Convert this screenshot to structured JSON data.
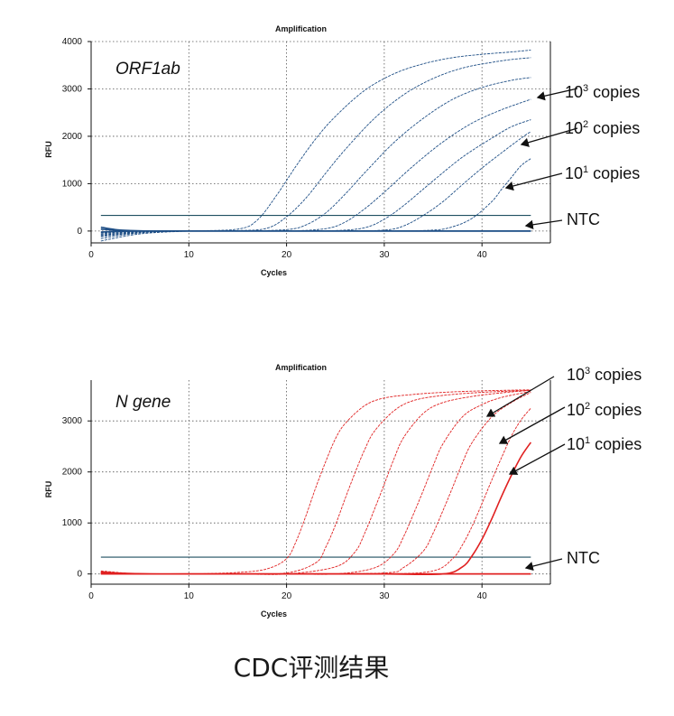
{
  "caption": "CDC评测结果",
  "chart_data": [
    {
      "type": "line",
      "title": "Amplification",
      "xlabel": "Cycles",
      "ylabel": "RFU",
      "target": "ORF1ab",
      "color": "#1f4f86",
      "xlim": [
        0,
        47
      ],
      "ylim": [
        -250,
        4000
      ],
      "xticks": [
        0,
        10,
        20,
        30,
        40
      ],
      "yticks": [
        0,
        1000,
        2000,
        3000,
        4000
      ],
      "grid": "dotted",
      "threshold": 330,
      "annotations": [
        {
          "base": "10",
          "exp": "3",
          "text": "copies"
        },
        {
          "base": "10",
          "exp": "2",
          "text": "copies"
        },
        {
          "base": "10",
          "exp": "1",
          "text": "copies"
        },
        {
          "base": "",
          "exp": "",
          "text": "NTC"
        }
      ],
      "series": [
        {
          "x": [
            1,
            5,
            10,
            15,
            17,
            19,
            21,
            23,
            25,
            28,
            31,
            34,
            37,
            40,
            43,
            45
          ],
          "y": [
            -210,
            -60,
            0,
            40,
            230,
            760,
            1380,
            1950,
            2420,
            2970,
            3320,
            3530,
            3660,
            3730,
            3780,
            3820
          ]
        },
        {
          "x": [
            1,
            5,
            10,
            15,
            18,
            20,
            22,
            24,
            26,
            29,
            32,
            35,
            38,
            41,
            43,
            45
          ],
          "y": [
            -160,
            -40,
            0,
            10,
            60,
            300,
            700,
            1220,
            1720,
            2380,
            2880,
            3220,
            3440,
            3560,
            3620,
            3660
          ]
        },
        {
          "x": [
            1,
            5,
            10,
            15,
            20,
            22,
            24,
            26,
            28,
            31,
            34,
            37,
            40,
            43,
            45
          ],
          "y": [
            -120,
            -30,
            0,
            0,
            30,
            130,
            380,
            780,
            1230,
            1870,
            2380,
            2780,
            3030,
            3180,
            3240
          ]
        },
        {
          "x": [
            1,
            5,
            10,
            15,
            20,
            24,
            26,
            28,
            30,
            33,
            36,
            39,
            42,
            45
          ],
          "y": [
            -100,
            -20,
            0,
            0,
            0,
            50,
            190,
            470,
            820,
            1380,
            1880,
            2280,
            2560,
            2780
          ]
        },
        {
          "x": [
            1,
            5,
            10,
            15,
            20,
            25,
            28,
            30,
            32,
            35,
            38,
            41,
            43,
            45
          ],
          "y": [
            -80,
            -10,
            0,
            0,
            0,
            10,
            70,
            250,
            540,
            1060,
            1560,
            1960,
            2200,
            2350
          ]
        },
        {
          "x": [
            1,
            5,
            10,
            15,
            20,
            25,
            30,
            32,
            34,
            36,
            38,
            40,
            42,
            44,
            45
          ],
          "y": [
            -60,
            0,
            0,
            0,
            0,
            0,
            20,
            110,
            330,
            620,
            980,
            1330,
            1650,
            1960,
            2100
          ]
        },
        {
          "x": [
            1,
            5,
            10,
            15,
            20,
            25,
            30,
            35,
            37,
            39,
            41,
            42,
            43,
            44,
            45
          ],
          "y": [
            -40,
            0,
            0,
            0,
            0,
            0,
            0,
            20,
            90,
            270,
            620,
            880,
            1130,
            1380,
            1530
          ]
        },
        {
          "x": [
            1,
            3,
            6,
            10,
            20,
            30,
            40,
            45
          ],
          "y": [
            80,
            20,
            0,
            0,
            0,
            0,
            0,
            0
          ]
        },
        {
          "x": [
            1,
            3,
            6,
            10,
            20,
            30,
            40,
            45
          ],
          "y": [
            -20,
            -5,
            0,
            0,
            0,
            0,
            0,
            0
          ]
        },
        {
          "x": [
            1,
            3,
            6,
            10,
            20,
            30,
            40,
            45
          ],
          "y": [
            40,
            10,
            0,
            0,
            0,
            0,
            0,
            0
          ]
        }
      ]
    },
    {
      "type": "line",
      "title": "Amplification",
      "xlabel": "Cycles",
      "ylabel": "RFU",
      "target": "N gene",
      "color": "#e02020",
      "xlim": [
        0,
        47
      ],
      "ylim": [
        -200,
        3800
      ],
      "xticks": [
        0,
        10,
        20,
        30,
        40
      ],
      "yticks": [
        0,
        1000,
        2000,
        3000
      ],
      "grid": "dotted",
      "threshold": 330,
      "annotations": [
        {
          "base": "10",
          "exp": "3",
          "text": "copies"
        },
        {
          "base": "10",
          "exp": "2",
          "text": "copies"
        },
        {
          "base": "10",
          "exp": "1",
          "text": "copies"
        },
        {
          "base": "",
          "exp": "",
          "text": "NTC"
        }
      ],
      "series": [
        {
          "x": [
            1,
            5,
            10,
            15,
            18,
            20,
            21,
            22,
            23,
            24,
            25,
            26,
            28,
            30,
            33,
            36,
            40,
            45
          ],
          "y": [
            60,
            0,
            0,
            30,
            100,
            300,
            650,
            1150,
            1700,
            2200,
            2650,
            2950,
            3300,
            3450,
            3520,
            3560,
            3590,
            3610
          ]
        },
        {
          "x": [
            1,
            5,
            10,
            15,
            20,
            23,
            24,
            25,
            26,
            27,
            28,
            29,
            31,
            33,
            36,
            40,
            45
          ],
          "y": [
            40,
            0,
            0,
            0,
            20,
            220,
            520,
            960,
            1480,
            1980,
            2440,
            2800,
            3200,
            3400,
            3500,
            3560,
            3600
          ]
        },
        {
          "x": [
            1,
            5,
            10,
            15,
            20,
            25,
            27,
            28,
            29,
            30,
            31,
            32,
            34,
            36,
            39,
            42,
            45
          ],
          "y": [
            30,
            0,
            0,
            0,
            0,
            140,
            430,
            800,
            1270,
            1760,
            2260,
            2680,
            3150,
            3360,
            3480,
            3550,
            3600
          ]
        },
        {
          "x": [
            1,
            5,
            10,
            20,
            25,
            29,
            31,
            32,
            33,
            34,
            35,
            36,
            38,
            40,
            42,
            45
          ],
          "y": [
            20,
            0,
            0,
            0,
            0,
            120,
            400,
            740,
            1180,
            1640,
            2120,
            2550,
            3080,
            3320,
            3460,
            3580
          ]
        },
        {
          "x": [
            1,
            5,
            10,
            20,
            30,
            32,
            34,
            35,
            36,
            37,
            38,
            39,
            41,
            43,
            45
          ],
          "y": [
            10,
            0,
            0,
            0,
            20,
            130,
            450,
            800,
            1240,
            1700,
            2180,
            2580,
            3080,
            3360,
            3560
          ]
        },
        {
          "x": [
            1,
            5,
            10,
            20,
            30,
            35,
            37,
            38,
            39,
            40,
            41,
            42,
            43,
            44,
            45
          ],
          "y": [
            0,
            0,
            0,
            0,
            0,
            60,
            300,
            570,
            940,
            1380,
            1840,
            2280,
            2700,
            3020,
            3250
          ]
        },
        {
          "x": [
            1,
            5,
            10,
            20,
            30,
            36,
            38,
            39,
            40,
            41,
            42,
            43,
            44,
            45
          ],
          "y": [
            0,
            0,
            0,
            0,
            0,
            0,
            140,
            360,
            680,
            1080,
            1520,
            1930,
            2300,
            2580
          ]
        },
        {
          "x": [
            1,
            3,
            6,
            10,
            20,
            30,
            40,
            45
          ],
          "y": [
            40,
            15,
            0,
            0,
            0,
            0,
            0,
            0
          ]
        },
        {
          "x": [
            1,
            3,
            6,
            10,
            20,
            30,
            40,
            45
          ],
          "y": [
            10,
            5,
            0,
            0,
            0,
            0,
            0,
            0
          ]
        }
      ]
    }
  ]
}
